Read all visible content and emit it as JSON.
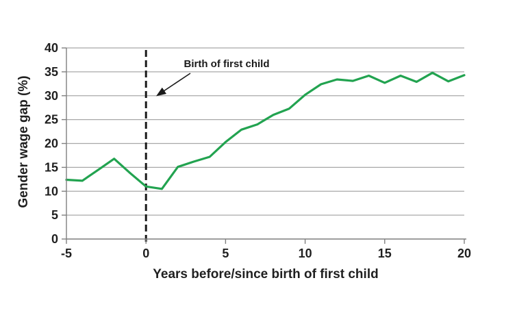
{
  "figure": {
    "background_color": "#ffffff"
  },
  "chart_data": {
    "type": "line",
    "title": "",
    "xlabel": "Years before/since birth of first child",
    "ylabel": "Gender wage gap (%)",
    "x": [
      -5,
      -4,
      -3,
      -2,
      -1,
      0,
      1,
      2,
      3,
      4,
      5,
      6,
      7,
      8,
      9,
      10,
      11,
      12,
      13,
      14,
      15,
      16,
      17,
      18,
      19,
      20
    ],
    "series": [
      {
        "name": "Gender wage gap",
        "color": "#22a350",
        "values": [
          12.4,
          12.2,
          14.5,
          16.8,
          13.8,
          11.0,
          10.5,
          15.1,
          16.2,
          17.2,
          20.3,
          22.9,
          24.0,
          26.0,
          27.3,
          30.2,
          32.4,
          33.4,
          33.1,
          34.2,
          32.7,
          34.2,
          32.9,
          34.8,
          33.0,
          34.3
        ]
      }
    ],
    "xlim": [
      -5,
      20
    ],
    "ylim": [
      0,
      40
    ],
    "x_ticks": [
      -5,
      0,
      5,
      10,
      15,
      20
    ],
    "y_ticks": [
      0,
      5,
      10,
      15,
      20,
      25,
      30,
      35,
      40
    ],
    "grid": "horizontal-only",
    "legend_position": "none",
    "colors": {
      "gridline": "#a8a8a8",
      "axis": "#7f7f7f",
      "text": "#1f1f1f",
      "annotation_line": "#1a1a1a"
    },
    "annotation": {
      "label": "Birth of first child",
      "line_style": "dashed-vertical",
      "line_x": 0,
      "arrow_points_to": {
        "x": 0,
        "y": 30
      }
    }
  }
}
